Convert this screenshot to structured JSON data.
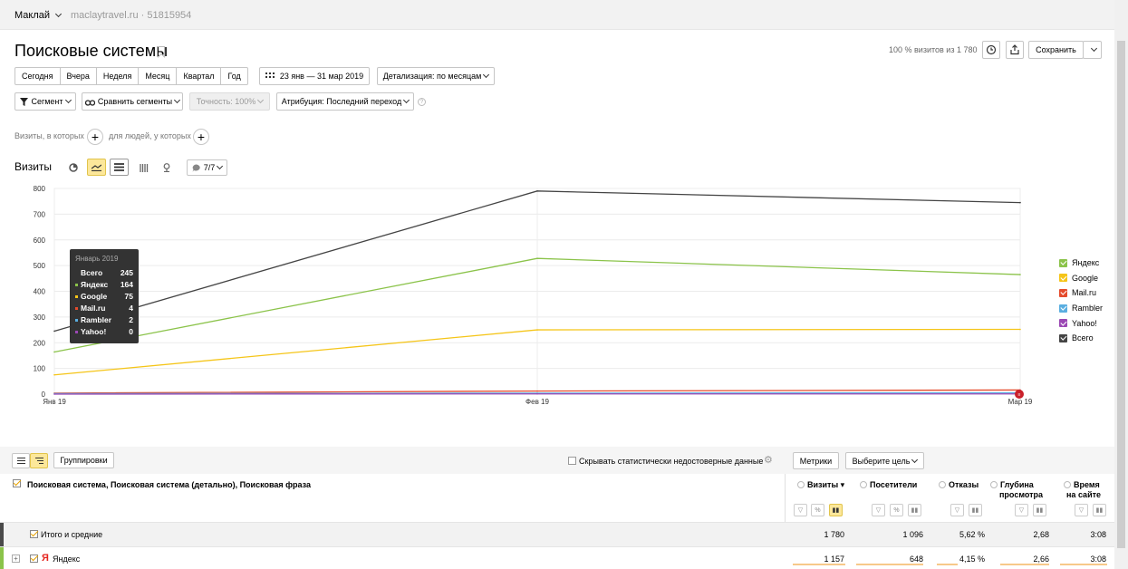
{
  "topbar": {
    "account": "Маклай",
    "site": "maclaytravel.ru · 51815954"
  },
  "page": {
    "title": "Поисковые системы",
    "percent_text": "100 % визитов из 1 780",
    "save_label": "Сохранить"
  },
  "period": {
    "buttons": [
      "Сегодня",
      "Вчера",
      "Неделя",
      "Месяц",
      "Квартал",
      "Год"
    ],
    "date_range": "23 янв — 31 мар 2019",
    "detail": "Детализация: по месяцам"
  },
  "filters": {
    "segment": "Сегмент",
    "compare": "Сравнить сегменты",
    "accuracy": "Точность: 100%",
    "attribution": "Атрибуция: Последний переход"
  },
  "segment_hint": {
    "visits": "Визиты, в которых",
    "people": "для людей, у которых"
  },
  "chart_controls": {
    "label": "Визиты",
    "series_count": "7/7"
  },
  "tooltip": {
    "header": "Январь 2019",
    "rows": [
      {
        "name": "Всего",
        "value": "245",
        "color": "#333333"
      },
      {
        "name": "Яндекс",
        "value": "164",
        "color": "#8bc34a"
      },
      {
        "name": "Google",
        "value": "75",
        "color": "#f5c518"
      },
      {
        "name": "Mail.ru",
        "value": "4",
        "color": "#e54b2c"
      },
      {
        "name": "Rambler",
        "value": "2",
        "color": "#5aaee0"
      },
      {
        "name": "Yahoo!",
        "value": "0",
        "color": "#9b48b4"
      }
    ]
  },
  "chart_data": {
    "type": "line",
    "x": [
      "Янв 19",
      "Фев 19",
      "Мар 19"
    ],
    "ylim": [
      0,
      800
    ],
    "yticks": [
      "0",
      "100",
      "200",
      "300",
      "400",
      "500",
      "600",
      "700",
      "800"
    ],
    "series": [
      {
        "name": "Яндекс",
        "color": "#8bc34a",
        "values": [
          164,
          528,
          465
        ]
      },
      {
        "name": "Google",
        "color": "#f5c518",
        "values": [
          75,
          250,
          252
        ]
      },
      {
        "name": "Mail.ru",
        "color": "#e54b2c",
        "values": [
          4,
          12,
          16
        ]
      },
      {
        "name": "Rambler",
        "color": "#5aaee0",
        "values": [
          2,
          4,
          5
        ]
      },
      {
        "name": "Yahoo!",
        "color": "#9b48b4",
        "values": [
          0,
          1,
          1
        ]
      },
      {
        "name": "Всего",
        "color": "#444444",
        "values": [
          245,
          790,
          745
        ]
      }
    ],
    "grid": true,
    "legend": "right"
  },
  "table": {
    "groupings": "Группировки",
    "hide_unreliable": "Скрывать статистически недостоверные данные",
    "metrics": "Метрики",
    "goal": "Выберите цель",
    "dimension": "Поисковая система, Поисковая система (детально), Поисковая фраза",
    "columns": [
      {
        "l1": "Визиты ▾",
        "l2": ""
      },
      {
        "l1": "Посетители",
        "l2": ""
      },
      {
        "l1": "Отказы",
        "l2": ""
      },
      {
        "l1": "Глубина",
        "l2": "просмотра"
      },
      {
        "l1": "Время",
        "l2": "на сайте"
      }
    ],
    "total": {
      "label": "Итого и средние",
      "values": [
        "1 780",
        "1 096",
        "5,62 %",
        "2,68",
        "3:08"
      ]
    },
    "yandex": {
      "label": "Яндекс",
      "values": [
        "1 157",
        "648",
        "4,15 %",
        "2,66",
        "3:08"
      ]
    }
  }
}
